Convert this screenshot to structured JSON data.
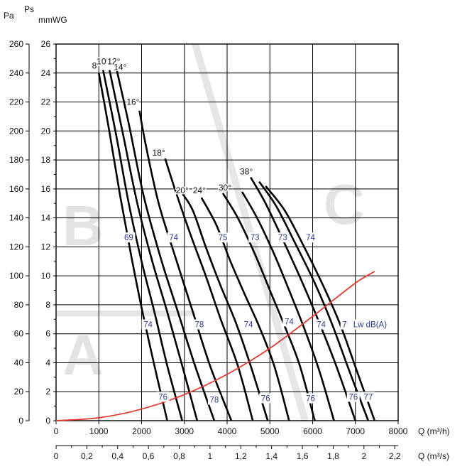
{
  "chart_data": {
    "type": "line",
    "units": {
      "left_outer": "Pa",
      "left_inner_top": "Ps",
      "left_inner": "mmWG",
      "x_primary": "Q (m³/h)",
      "x_secondary": "Q (m³/s)"
    },
    "axes": {
      "x_m3h": {
        "min": 0,
        "max": 8000,
        "ticks": [
          0,
          1000,
          2000,
          3000,
          4000,
          5000,
          6000,
          7000,
          8000
        ]
      },
      "x_m3s": {
        "min": 0,
        "max": 2.2222,
        "ticks": [
          "0",
          "0,2",
          "0,4",
          "0,6",
          "0,8",
          "1",
          "1,2",
          "1,4",
          "1,6",
          "1,8",
          "2",
          "2,2"
        ]
      },
      "y_pa": {
        "min": 0,
        "max": 260,
        "ticks": [
          0,
          20,
          40,
          60,
          80,
          100,
          120,
          140,
          160,
          180,
          200,
          220,
          240,
          260
        ]
      },
      "y_mmwg": {
        "min": 0,
        "max": 26,
        "ticks": [
          0,
          2,
          4,
          6,
          8,
          10,
          12,
          14,
          16,
          18,
          20,
          22,
          24,
          26
        ]
      }
    },
    "grid": true,
    "zones": [
      "B",
      "A",
      "C"
    ],
    "series": [
      {
        "name": "8°",
        "x": [
          1000,
          1250,
          1500,
          1750,
          2000,
          2300,
          2600
        ],
        "y": [
          240,
          199,
          155,
          115,
          78,
          38,
          0
        ]
      },
      {
        "name": "10°",
        "x": [
          1100,
          1400,
          1700,
          2000,
          2300,
          2600,
          2950
        ],
        "y": [
          242,
          198,
          150,
          110,
          75,
          38,
          0
        ]
      },
      {
        "name": "12°",
        "x": [
          1250,
          1550,
          1900,
          2250,
          2600,
          2950,
          3300
        ],
        "y": [
          242,
          200,
          150,
          110,
          75,
          38,
          0
        ]
      },
      {
        "name": "14°",
        "x": [
          1420,
          1700,
          2050,
          2450,
          2850,
          3250,
          3700
        ],
        "y": [
          242,
          205,
          155,
          112,
          75,
          38,
          0
        ]
      },
      {
        "name": "16°",
        "x": [
          1950,
          2100,
          2400,
          2800,
          3200,
          3600,
          4100
        ],
        "y": [
          214,
          190,
          150,
          112,
          75,
          38,
          0
        ]
      },
      {
        "name": "18°",
        "x": [
          2550,
          2800,
          3150,
          3500,
          3850,
          4250,
          4600
        ],
        "y": [
          181,
          158,
          128,
          100,
          70,
          38,
          0
        ]
      },
      {
        "name": "20°",
        "x": [
          2950,
          3200,
          3500,
          3850,
          4200,
          4550,
          4950
        ],
        "y": [
          157,
          145,
          120,
          93,
          68,
          38,
          0
        ]
      },
      {
        "name": "24°",
        "x": [
          3400,
          3750,
          4050,
          4400,
          4750,
          5100,
          5450
        ],
        "y": [
          154,
          135,
          112,
          88,
          65,
          38,
          0
        ]
      },
      {
        "name": "30°",
        "x": [
          3900,
          4250,
          4650,
          5000,
          5350,
          5700,
          6050
        ],
        "y": [
          157,
          140,
          115,
          90,
          65,
          38,
          0
        ]
      },
      {
        "name": "30°b",
        "x": [
          4350,
          4700,
          5100,
          5450,
          5800,
          6150,
          6500
        ],
        "y": [
          158,
          140,
          115,
          90,
          64,
          35,
          0
        ]
      },
      {
        "name": "38°",
        "x": [
          4550,
          4900,
          5350,
          5750,
          6150,
          6550,
          7000
        ],
        "y": [
          168,
          150,
          122,
          96,
          68,
          38,
          0
        ]
      },
      {
        "name": "38°b",
        "x": [
          4750,
          5150,
          5600,
          6050,
          6450,
          6850,
          7300
        ],
        "y": [
          165,
          148,
          122,
          95,
          67,
          35,
          0
        ]
      },
      {
        "name": "38°c",
        "x": [
          4900,
          5350,
          5800,
          6250,
          6650,
          7050,
          7450
        ],
        "y": [
          162,
          145,
          120,
          93,
          66,
          33,
          0
        ]
      }
    ],
    "system_curve": {
      "name": "Lw dB(A)",
      "color": "#e23b2e",
      "x": [
        0,
        1000,
        2000,
        3000,
        4000,
        5000,
        6000,
        7000,
        7450
      ],
      "y": [
        0,
        2,
        8,
        18,
        32,
        50,
        72,
        95,
        103
      ]
    },
    "annotations": {
      "angles": [
        "8°",
        "10°",
        "12°",
        "14°",
        "16°",
        "18°",
        "20°",
        "24°",
        "30°",
        "38°"
      ],
      "db_labels": [
        {
          "text": "69",
          "x": 1700,
          "y": 125
        },
        {
          "text": "74",
          "x": 2750,
          "y": 125
        },
        {
          "text": "75",
          "x": 3900,
          "y": 125
        },
        {
          "text": "73",
          "x": 4650,
          "y": 125
        },
        {
          "text": "73",
          "x": 5300,
          "y": 125
        },
        {
          "text": "74",
          "x": 5950,
          "y": 125
        },
        {
          "text": "74",
          "x": 2150,
          "y": 65
        },
        {
          "text": "78",
          "x": 3350,
          "y": 65
        },
        {
          "text": "74",
          "x": 4500,
          "y": 65
        },
        {
          "text": "74",
          "x": 5450,
          "y": 67
        },
        {
          "text": "74",
          "x": 6200,
          "y": 65
        },
        {
          "text": "75",
          "x": 6800,
          "y": 65
        },
        {
          "text": "76",
          "x": 2500,
          "y": 15
        },
        {
          "text": "78",
          "x": 3700,
          "y": 13
        },
        {
          "text": "76",
          "x": 4900,
          "y": 14
        },
        {
          "text": "76",
          "x": 5950,
          "y": 14
        },
        {
          "text": "76",
          "x": 6950,
          "y": 15
        },
        {
          "text": "77",
          "x": 7300,
          "y": 15
        }
      ],
      "lw_label": "Lw dB(A)"
    }
  }
}
